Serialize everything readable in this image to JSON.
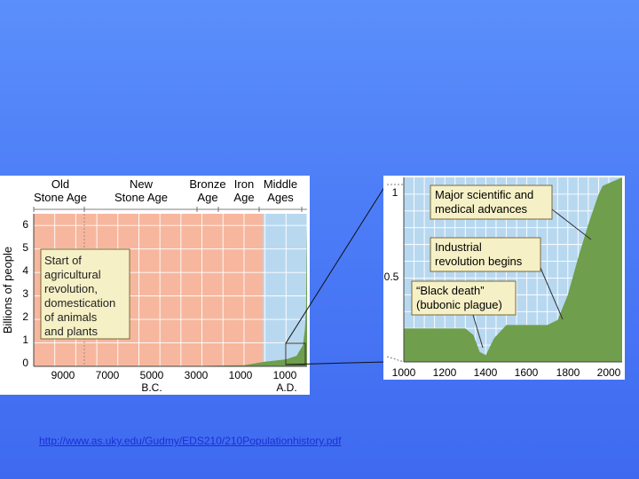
{
  "source_link": "http://www.as.uky.edu/Gudmy/EDS210/210Populationhistory.pdf",
  "colors": {
    "slide_bg": "#4d7ef7",
    "prehistory_band": "#f6b79e",
    "ad_band": "#b8d8f0",
    "curve_fill": "#6f9e4c",
    "grid": "#ffffff",
    "callout_bg": "#f6f0c6",
    "callout_border": "#7a6a3a"
  },
  "main_chart": {
    "ylabel": "Billions of people",
    "yticks": [
      "0",
      "1",
      "2",
      "3",
      "4",
      "5",
      "6"
    ],
    "xticks": [
      "9000",
      "7000",
      "5000",
      "3000",
      "1000",
      "1000"
    ],
    "era_labels": [
      {
        "id": "old-stone-age",
        "line1": "Old",
        "line2": "Stone Age"
      },
      {
        "id": "new-stone-age",
        "line1": "New",
        "line2": "Stone Age"
      },
      {
        "id": "bronze-age",
        "line1": "Bronze",
        "line2": "Age"
      },
      {
        "id": "iron-age",
        "line1": "Iron",
        "line2": "Age"
      },
      {
        "id": "middle-ages",
        "line1": "Middle",
        "line2": "Ages"
      }
    ],
    "era_label_bc": "B.C.",
    "era_label_ad": "A.D.",
    "annotation": [
      "Start of",
      "agricultural",
      "revolution,",
      "domestication",
      "of animals",
      "and plants"
    ]
  },
  "inset_chart": {
    "yticks": [
      "1",
      "0.5"
    ],
    "xticks": [
      "1000",
      "1200",
      "1400",
      "1600",
      "1800",
      "2000"
    ],
    "annotations": [
      {
        "id": "scientific",
        "lines": [
          "Major scientific and",
          "medical advances"
        ]
      },
      {
        "id": "industrial",
        "lines": [
          "Industrial",
          "revolution begins"
        ]
      },
      {
        "id": "plague",
        "lines": [
          "“Black death”",
          "(bubonic plague)"
        ]
      }
    ]
  },
  "chart_data": [
    {
      "type": "area",
      "title": "",
      "ylabel": "Billions of people",
      "xlabel": "",
      "x_unit": "year (negative = B.C.)",
      "ylim": [
        0,
        6.5
      ],
      "x": [
        -11000,
        -9000,
        -7000,
        -5000,
        -3000,
        -1000,
        1,
        1000,
        1500,
        1800,
        1900,
        1950,
        2000
      ],
      "values": [
        0.001,
        0.002,
        0.005,
        0.01,
        0.02,
        0.05,
        0.2,
        0.3,
        0.45,
        0.9,
        1.6,
        2.5,
        6.0
      ],
      "bands": [
        {
          "name": "B.C.",
          "x": [
            -11000,
            1
          ]
        },
        {
          "name": "A.D.",
          "x": [
            1,
            2000
          ]
        }
      ]
    },
    {
      "type": "area",
      "title": "",
      "ylabel": "",
      "xlabel": "",
      "x_unit": "year A.D.",
      "xlim": [
        1000,
        2000
      ],
      "ylim": [
        0,
        1.1
      ],
      "x": [
        1000,
        1100,
        1200,
        1300,
        1340,
        1370,
        1400,
        1440,
        1500,
        1600,
        1700,
        1750,
        1800,
        1850,
        1900,
        1950,
        1970
      ],
      "values": [
        0.2,
        0.2,
        0.2,
        0.2,
        0.16,
        0.06,
        0.04,
        0.14,
        0.22,
        0.22,
        0.22,
        0.25,
        0.4,
        0.62,
        0.82,
        1.0,
        1.05
      ]
    }
  ]
}
